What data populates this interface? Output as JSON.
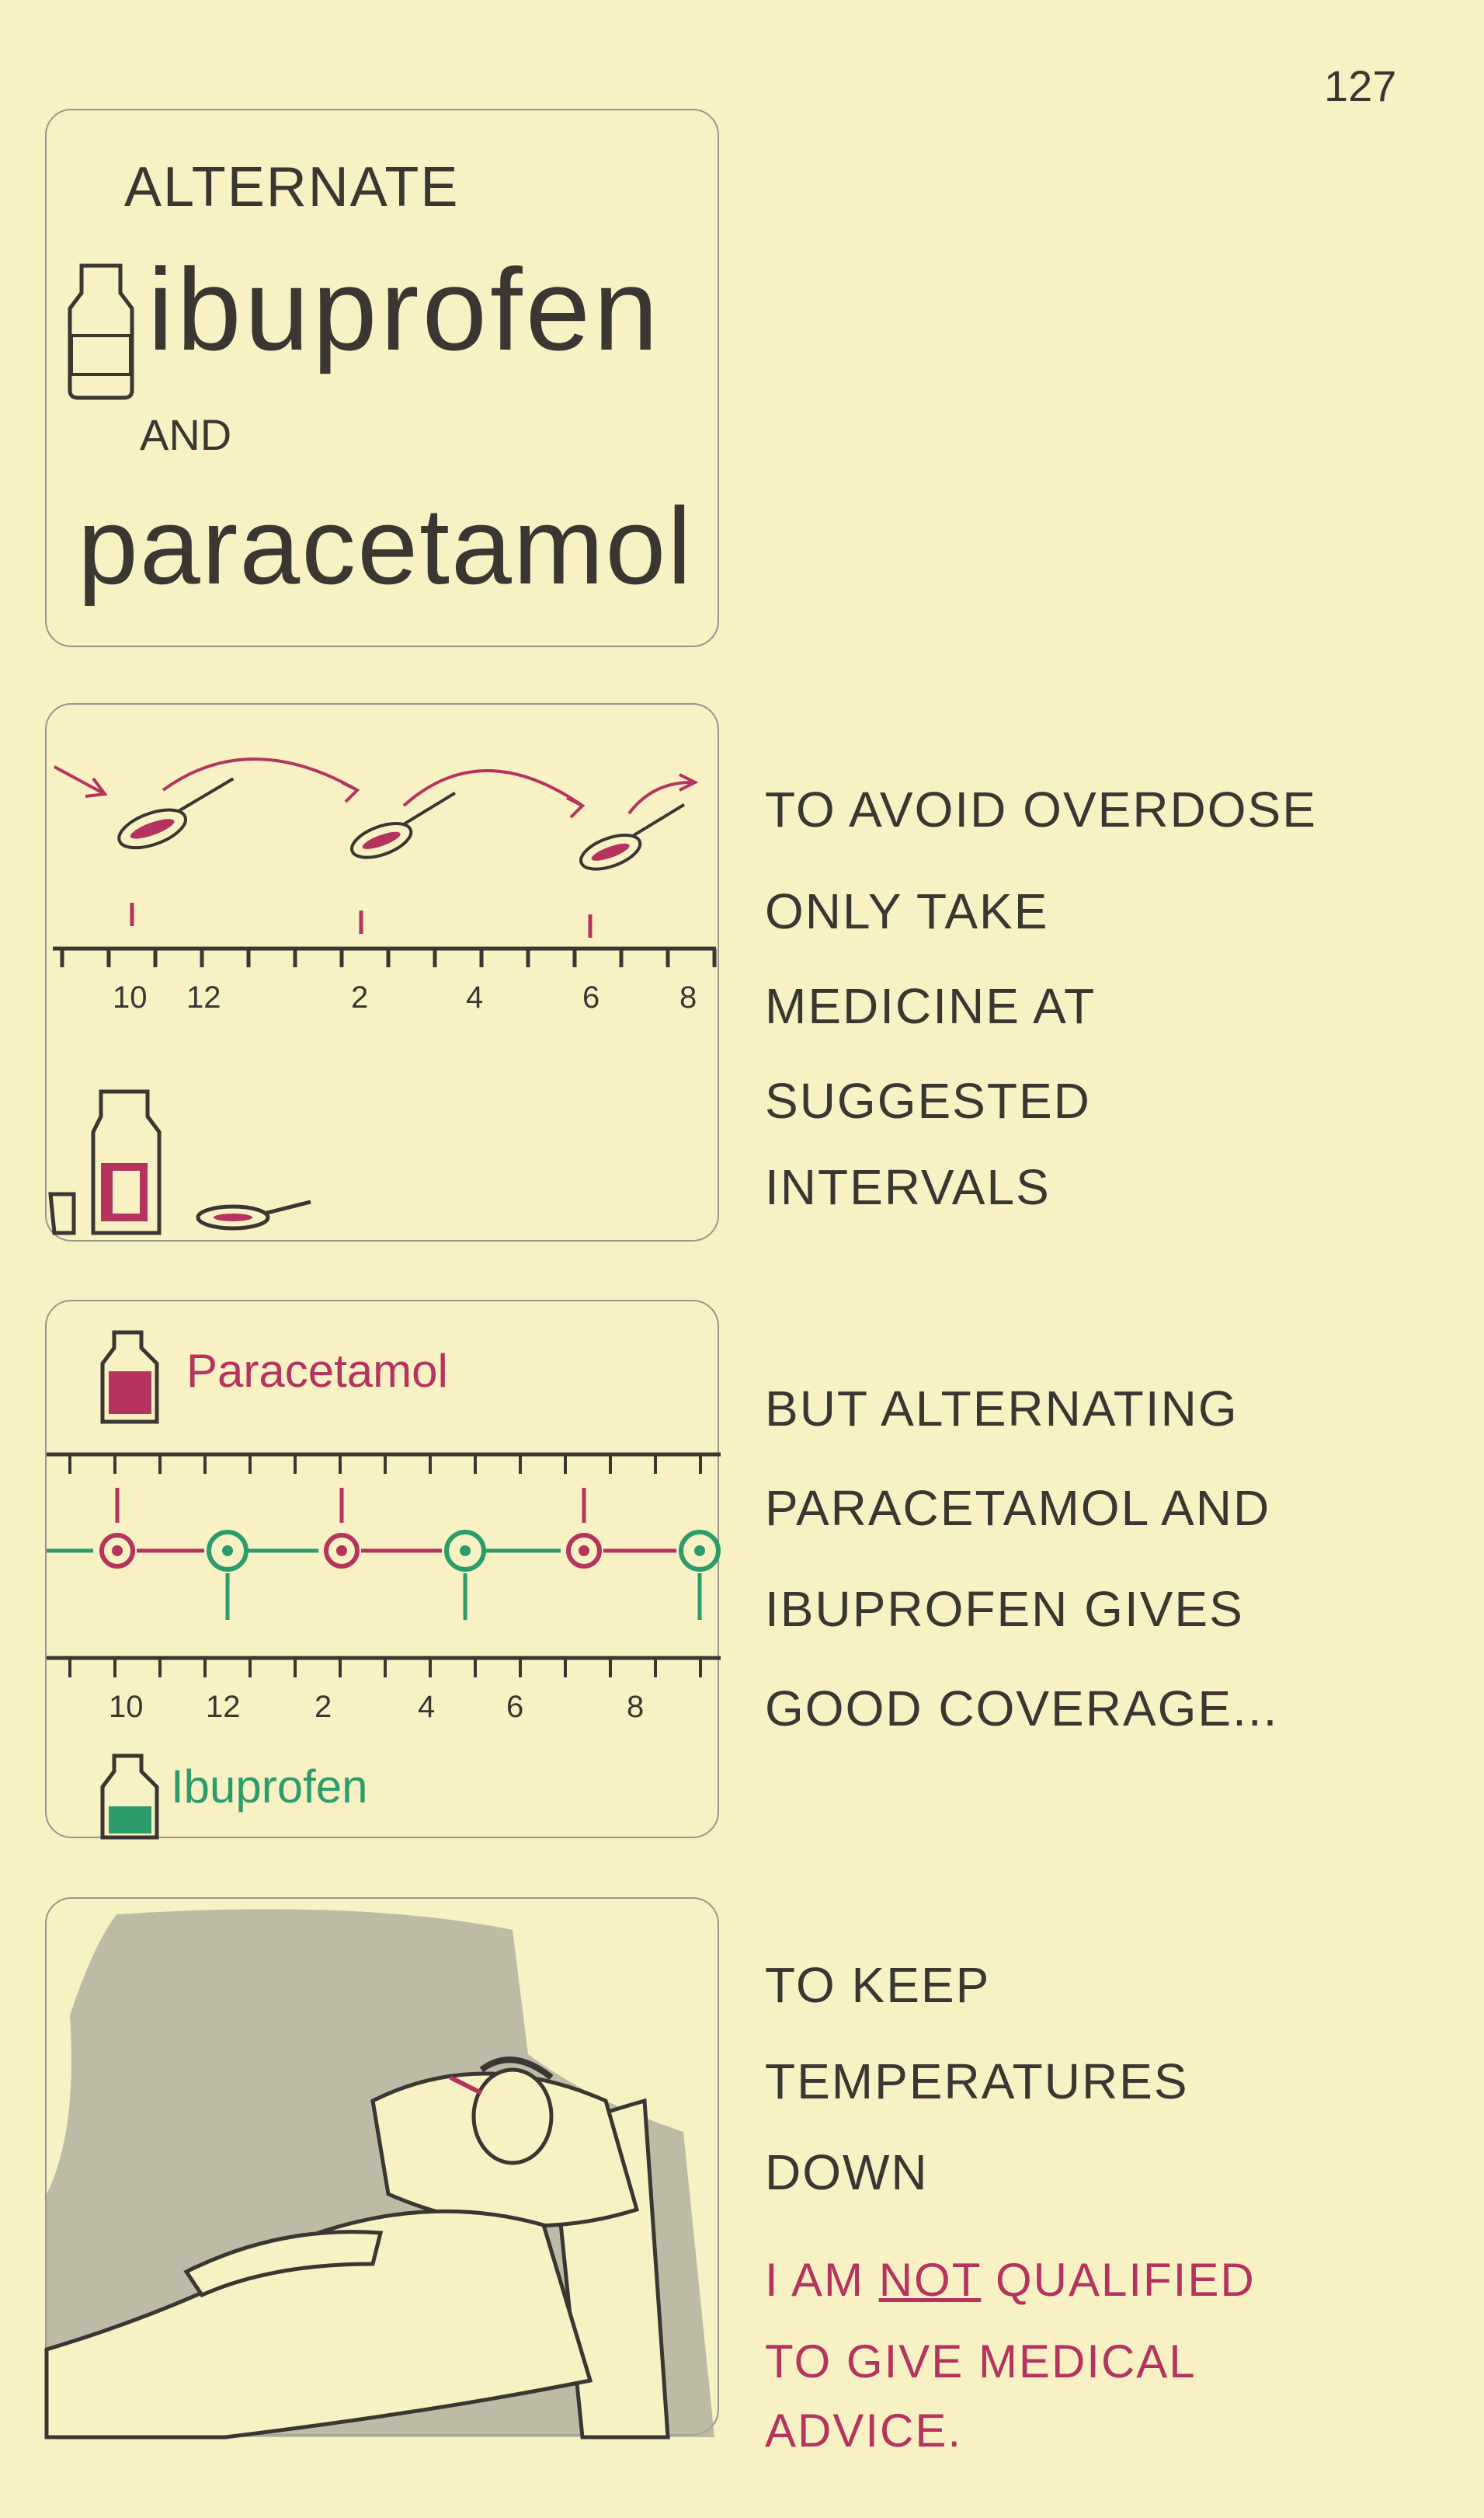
{
  "page_number": "127",
  "colors": {
    "paper": "#f7f1c4",
    "ink": "#3b3631",
    "paracetamol": "#b5345f",
    "ibuprofen": "#2c9c6b",
    "shading": "#a9a79c"
  },
  "panel1": {
    "line1": "Alternate",
    "line2": "ibuprofen",
    "line3": "and",
    "line4": "paracetamol",
    "icon": "medicine-bottle-icon"
  },
  "panel2": {
    "ticks": [
      "10",
      "12",
      "2",
      "4",
      "6",
      "8"
    ],
    "caption": [
      "To avoid overdose",
      "only take",
      "medicine at",
      "suggested",
      "intervals"
    ]
  },
  "panel3": {
    "label_top": "Paracetamol",
    "label_bottom": "Ibuprofen",
    "ticks": [
      "10",
      "12",
      "2",
      "4",
      "6",
      "8"
    ],
    "caption": [
      "But alternating",
      "paracetamol and",
      "ibuprofen gives",
      "good coverage..."
    ]
  },
  "panel4": {
    "caption": [
      "To keep",
      "temperatures",
      "down"
    ],
    "disclaimer": {
      "before": "I am ",
      "emphasis": "not",
      "after": " qualified",
      "line2": "to give medical",
      "line3": "advice."
    }
  }
}
